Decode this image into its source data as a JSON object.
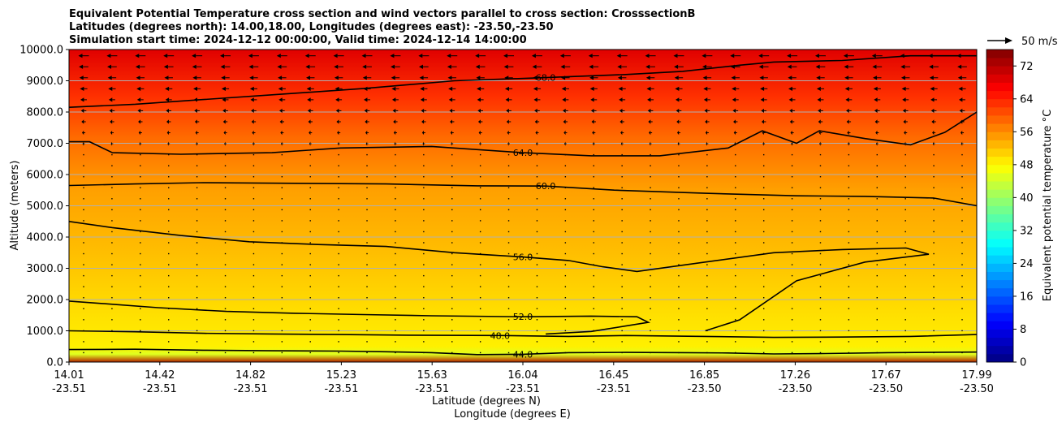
{
  "chart_data": {
    "type": "contourf",
    "title": [
      "Equivalent Potential Temperature cross section and wind vectors parallel to cross section: CrosssectionB",
      "Latitudes (degrees north): 14.00,18.00, Longitudes (degrees east): -23.50,-23.50",
      "Simulation start time: 2024-12-12 00:00:00, Valid time: 2024-12-14 14:00:00"
    ],
    "xlabel": "Latitude (degrees N)",
    "xlabel2": "Longitude (degrees E)",
    "ylabel": "Altitude (meters)",
    "x_range": [
      14.01,
      17.99
    ],
    "ylim": [
      0,
      10000
    ],
    "y_ticks": [
      "0.0",
      "1000.0",
      "2000.0",
      "3000.0",
      "4000.0",
      "5000.0",
      "6000.0",
      "7000.0",
      "8000.0",
      "9000.0",
      "10000.0"
    ],
    "x_ticks": [
      {
        "lat": "14.01",
        "lon": "-23.51"
      },
      {
        "lat": "14.42",
        "lon": "-23.51"
      },
      {
        "lat": "14.82",
        "lon": "-23.51"
      },
      {
        "lat": "15.23",
        "lon": "-23.51"
      },
      {
        "lat": "15.63",
        "lon": "-23.51"
      },
      {
        "lat": "16.04",
        "lon": "-23.51"
      },
      {
        "lat": "16.45",
        "lon": "-23.51"
      },
      {
        "lat": "16.85",
        "lon": "-23.50"
      },
      {
        "lat": "17.26",
        "lon": "-23.50"
      },
      {
        "lat": "17.67",
        "lon": "-23.50"
      },
      {
        "lat": "17.99",
        "lon": "-23.50"
      }
    ],
    "grid": true,
    "colorbar": {
      "label": "Equivalent potential temperature °C",
      "min": 0,
      "max": 76,
      "step": 2,
      "ticks": [
        "0",
        "8",
        "16",
        "24",
        "32",
        "40",
        "48",
        "56",
        "64",
        "72"
      ]
    },
    "quiver_key": {
      "label": "50 m/s"
    },
    "contours": [
      {
        "level": 44,
        "label": "44.0",
        "points": [
          [
            14.01,
            400
          ],
          [
            14.3,
            410
          ],
          [
            14.6,
            380
          ],
          [
            14.9,
            360
          ],
          [
            15.2,
            350
          ],
          [
            15.4,
            330
          ],
          [
            15.6,
            300
          ],
          [
            15.8,
            240
          ],
          [
            16.0,
            250
          ],
          [
            16.2,
            300
          ],
          [
            16.45,
            310
          ],
          [
            16.7,
            300
          ],
          [
            16.9,
            290
          ],
          [
            17.1,
            260
          ],
          [
            17.3,
            270
          ],
          [
            17.6,
            300
          ],
          [
            17.99,
            320
          ]
        ]
      },
      {
        "level": 48,
        "label": "48.0",
        "points": [
          [
            14.01,
            1000
          ],
          [
            14.3,
            970
          ],
          [
            14.6,
            920
          ],
          [
            14.9,
            900
          ],
          [
            15.2,
            880
          ],
          [
            15.5,
            860
          ],
          [
            15.9,
            850
          ],
          [
            16.2,
            820
          ],
          [
            16.45,
            850
          ],
          [
            16.8,
            820
          ],
          [
            17.1,
            790
          ],
          [
            17.4,
            800
          ],
          [
            17.7,
            820
          ],
          [
            17.99,
            880
          ]
        ]
      },
      {
        "level": 52,
        "label": "52.0",
        "points": [
          [
            14.01,
            1950
          ],
          [
            14.2,
            1850
          ],
          [
            14.4,
            1740
          ],
          [
            14.7,
            1620
          ],
          [
            15.0,
            1560
          ],
          [
            15.3,
            1520
          ],
          [
            15.6,
            1480
          ],
          [
            16.0,
            1450
          ],
          [
            16.3,
            1470
          ],
          [
            16.5,
            1450
          ],
          [
            16.55,
            1270
          ],
          [
            16.3,
            980
          ],
          [
            16.1,
            900
          ]
        ]
      },
      {
        "level": 56,
        "label": "56.0",
        "points": [
          [
            14.01,
            4500
          ],
          [
            14.2,
            4300
          ],
          [
            14.5,
            4050
          ],
          [
            14.8,
            3850
          ],
          [
            15.1,
            3760
          ],
          [
            15.4,
            3700
          ],
          [
            15.7,
            3500
          ],
          [
            16.0,
            3360
          ],
          [
            16.2,
            3250
          ],
          [
            16.35,
            3050
          ],
          [
            16.5,
            2900
          ],
          [
            16.8,
            3200
          ],
          [
            17.1,
            3500
          ],
          [
            17.4,
            3600
          ],
          [
            17.68,
            3650
          ],
          [
            17.78,
            3450
          ],
          [
            17.5,
            3200
          ],
          [
            17.2,
            2600
          ],
          [
            16.95,
            1350
          ],
          [
            16.8,
            1000
          ]
        ]
      },
      {
        "level": 60,
        "label": "60.0",
        "points": [
          [
            14.01,
            5650
          ],
          [
            14.3,
            5700
          ],
          [
            14.6,
            5740
          ],
          [
            15.0,
            5720
          ],
          [
            15.4,
            5700
          ],
          [
            15.8,
            5640
          ],
          [
            16.1,
            5630
          ],
          [
            16.4,
            5500
          ],
          [
            16.8,
            5400
          ],
          [
            17.2,
            5320
          ],
          [
            17.5,
            5300
          ],
          [
            17.8,
            5250
          ],
          [
            17.99,
            5000
          ]
        ]
      },
      {
        "level": 64,
        "label": "64.0",
        "points": [
          [
            14.01,
            7050
          ],
          [
            14.1,
            7050
          ],
          [
            14.2,
            6700
          ],
          [
            14.5,
            6650
          ],
          [
            14.9,
            6700
          ],
          [
            15.2,
            6850
          ],
          [
            15.6,
            6900
          ],
          [
            16.0,
            6700
          ],
          [
            16.3,
            6600
          ],
          [
            16.6,
            6600
          ],
          [
            16.9,
            6850
          ],
          [
            17.05,
            7400
          ],
          [
            17.2,
            7000
          ],
          [
            17.3,
            7400
          ],
          [
            17.5,
            7150
          ],
          [
            17.7,
            6950
          ],
          [
            17.85,
            7350
          ],
          [
            17.99,
            8000
          ]
        ]
      },
      {
        "level": 68,
        "label": "68.0",
        "points": [
          [
            14.01,
            8150
          ],
          [
            14.3,
            8250
          ],
          [
            14.6,
            8400
          ],
          [
            14.9,
            8550
          ],
          [
            15.3,
            8750
          ],
          [
            15.7,
            9000
          ],
          [
            16.1,
            9100
          ],
          [
            16.45,
            9200
          ],
          [
            16.7,
            9300
          ],
          [
            16.95,
            9500
          ],
          [
            17.1,
            9600
          ],
          [
            17.4,
            9650
          ],
          [
            17.7,
            9800
          ],
          [
            17.99,
            9800
          ]
        ]
      }
    ]
  }
}
